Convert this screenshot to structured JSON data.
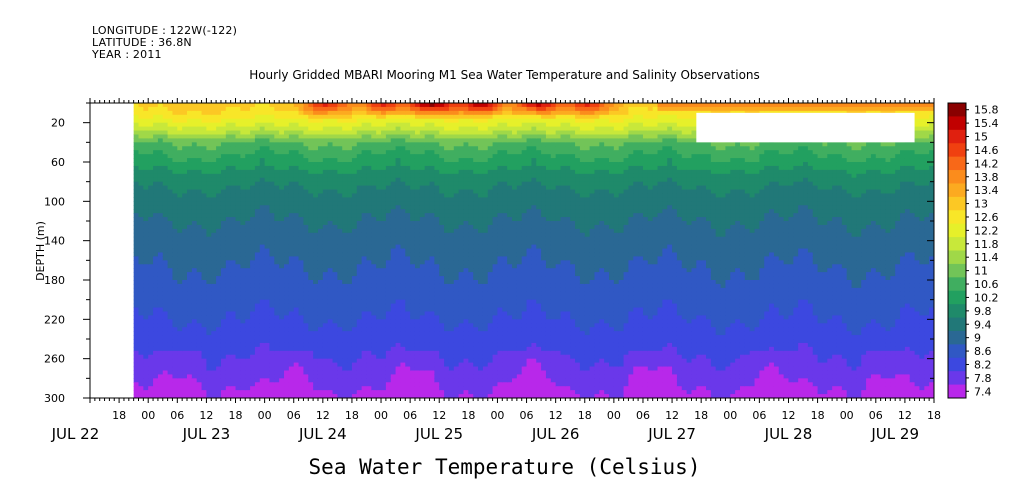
{
  "meta": {
    "longitude": "LONGITUDE : 122W(-122)",
    "latitude": "LATITUDE : 36.8N",
    "year": "YEAR : 2011"
  },
  "title": "Hourly Gridded MBARI Mooring M1 Sea Water Temperature and Salinity Observations",
  "bottom_title": "Sea Water Temperature (Celsius)",
  "chart_data": {
    "type": "heatmap",
    "title": "Hourly Gridded MBARI Mooring M1 Sea Water Temperature and Salinity Observations",
    "xlabel": "",
    "ylabel": "DEPTH (m)",
    "colorbar_label": "Sea Water Temperature (Celsius)",
    "x_range_hours_from_jul22_00": [
      12,
      186
    ],
    "data_start_hour": 21,
    "y_range": [
      0,
      300
    ],
    "y_inverted": true,
    "y_ticks": [
      20,
      60,
      100,
      140,
      180,
      220,
      260,
      300
    ],
    "x_hour_tick_labels": [
      "18",
      "00",
      "06",
      "12",
      "18",
      "00",
      "06",
      "12",
      "18",
      "00",
      "06",
      "12",
      "18",
      "00",
      "06",
      "12",
      "18",
      "00",
      "06",
      "12",
      "18",
      "00",
      "06",
      "12",
      "18",
      "00",
      "06",
      "12",
      "18",
      "00",
      "06",
      "12"
    ],
    "x_hour_tick_positions": [
      18,
      24,
      30,
      36,
      42,
      48,
      54,
      60,
      66,
      72,
      78,
      84,
      90,
      96,
      102,
      108,
      114,
      120,
      126,
      132,
      138,
      144,
      150,
      156,
      162,
      168,
      174,
      180,
      186,
      192,
      198,
      204
    ],
    "x_day_labels": [
      {
        "label": "JUL 22",
        "hour": 9
      },
      {
        "label": "JUL 23",
        "hour": 36
      },
      {
        "label": "JUL 24",
        "hour": 60
      },
      {
        "label": "JUL 25",
        "hour": 84
      },
      {
        "label": "JUL 26",
        "hour": 108
      },
      {
        "label": "JUL 27",
        "hour": 132
      },
      {
        "label": "JUL 28",
        "hour": 156
      },
      {
        "label": "JUL 29",
        "hour": 178
      }
    ],
    "missing_block": {
      "hours": [
        137,
        182
      ],
      "depth": [
        10,
        40
      ]
    },
    "depth_profile": [
      {
        "depth": 0,
        "temp": 13.2
      },
      {
        "depth": 10,
        "temp": 12.9
      },
      {
        "depth": 20,
        "temp": 12.4
      },
      {
        "depth": 30,
        "temp": 11.8
      },
      {
        "depth": 40,
        "temp": 11.0
      },
      {
        "depth": 60,
        "temp": 10.4
      },
      {
        "depth": 80,
        "temp": 9.9
      },
      {
        "depth": 100,
        "temp": 9.6
      },
      {
        "depth": 140,
        "temp": 9.2
      },
      {
        "depth": 180,
        "temp": 8.9
      },
      {
        "depth": 220,
        "temp": 8.6
      },
      {
        "depth": 260,
        "temp": 8.2
      },
      {
        "depth": 300,
        "temp": 7.7
      }
    ],
    "surface_warm_events": [
      {
        "hour": 60,
        "peak": 15.0
      },
      {
        "hour": 72,
        "peak": 15.0
      },
      {
        "hour": 82,
        "peak": 15.8
      },
      {
        "hour": 92,
        "peak": 15.6
      },
      {
        "hour": 104,
        "peak": 15.4
      },
      {
        "hour": 114,
        "peak": 15.0
      }
    ],
    "colorbar_levels": [
      "15.8",
      "15.4",
      "15",
      "14.6",
      "14.2",
      "13.8",
      "13.4",
      "13",
      "12.6",
      "12.2",
      "11.8",
      "11.4",
      "11",
      "10.6",
      "10.2",
      "9.8",
      "9.4",
      "9",
      "8.6",
      "8.2",
      "7.8",
      "7.4"
    ],
    "colorbar_colors": [
      "#8a0000",
      "#c10000",
      "#e0200f",
      "#f04010",
      "#f86818",
      "#fb8c1c",
      "#fcaa20",
      "#fcc824",
      "#f8e628",
      "#e6f02a",
      "#c8e83a",
      "#a0d848",
      "#72c458",
      "#40ae60",
      "#22a060",
      "#1f8a6a",
      "#217878",
      "#2a6894",
      "#3058c4",
      "#3c48e0",
      "#6a38ea",
      "#b828ea"
    ]
  }
}
